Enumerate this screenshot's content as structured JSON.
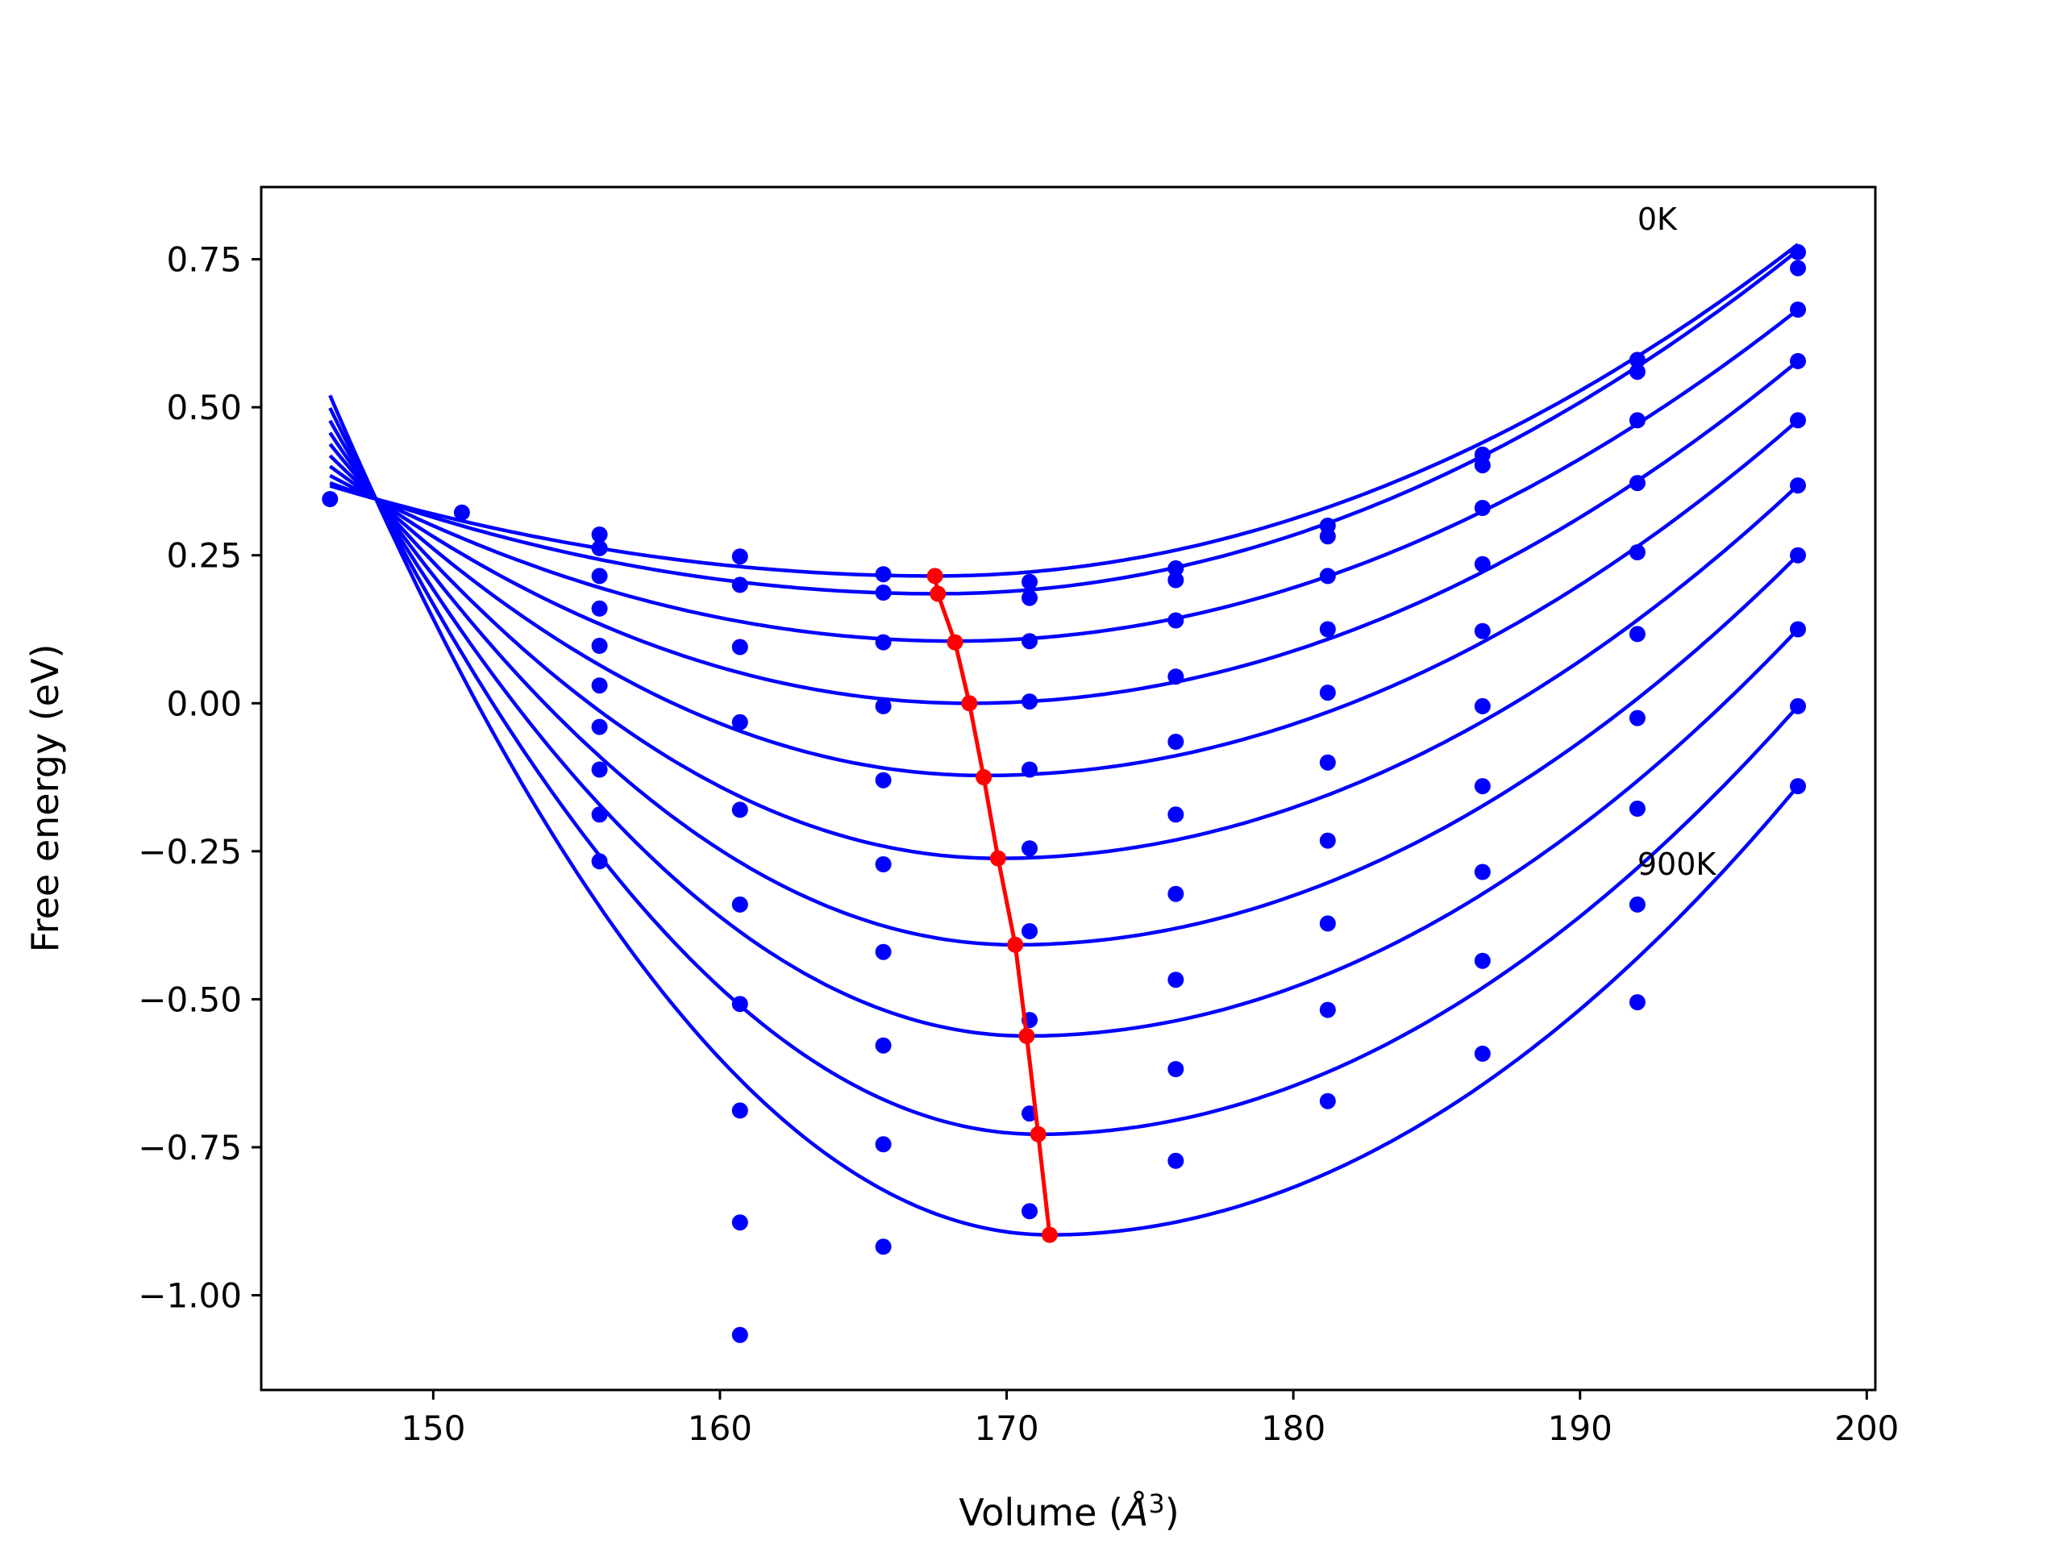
{
  "chart_data": {
    "type": "line",
    "title": "",
    "xlabel": "Volume (",
    "xlabel_unit": "Å",
    "xlabel_sup": "3",
    "xlabel_close": ")",
    "ylabel": "Free energy (eV)",
    "xlim": [
      144,
      200.3
    ],
    "ylim": [
      -1.16,
      0.872
    ],
    "xticks": [
      150,
      160,
      170,
      180,
      190,
      200
    ],
    "xtick_labels": [
      "150",
      "160",
      "170",
      "180",
      "190",
      "200"
    ],
    "yticks": [
      0.75,
      0.5,
      0.25,
      0.0,
      -0.25,
      -0.5,
      -0.75,
      -1.0
    ],
    "ytick_labels": [
      "0.75",
      "0.50",
      "0.25",
      "0.00",
      "−0.25",
      "−0.50",
      "−0.75",
      "−1.00"
    ],
    "grid": false,
    "legend": "none",
    "colors": {
      "fit_curves": "#0000ff",
      "data_points": "#0000ff",
      "minimum_path": "#ff0000"
    },
    "annotations": [
      {
        "text": "0K",
        "x": 192.0,
        "y": 0.8
      },
      {
        "text": "900K",
        "x": 192.0,
        "y": -0.29
      }
    ],
    "fit_curves": {
      "x_range": [
        146.4,
        197.6
      ],
      "pivot": {
        "x": 148.0,
        "y": 0.345
      },
      "curves": [
        {
          "min_x": 167.5,
          "min_y": 0.215,
          "end_y": 0.775
        },
        {
          "min_x": 167.6,
          "min_y": 0.185,
          "end_y": 0.765
        },
        {
          "min_x": 168.2,
          "min_y": 0.105,
          "end_y": 0.665
        },
        {
          "min_x": 168.7,
          "min_y": 0.0,
          "end_y": 0.578
        },
        {
          "min_x": 169.2,
          "min_y": -0.122,
          "end_y": 0.478
        },
        {
          "min_x": 169.7,
          "min_y": -0.262,
          "end_y": 0.368
        },
        {
          "min_x": 170.3,
          "min_y": -0.408,
          "end_y": 0.25
        },
        {
          "min_x": 170.7,
          "min_y": -0.562,
          "end_y": 0.125
        },
        {
          "min_x": 171.1,
          "min_y": -0.728,
          "end_y": -0.005
        },
        {
          "min_x": 171.5,
          "min_y": -0.898,
          "end_y": -0.14
        }
      ]
    },
    "data_points": [
      {
        "x": 146.4,
        "y": 0.345
      },
      {
        "x": 151.0,
        "y": 0.322
      },
      {
        "x": 155.8,
        "y": 0.285
      },
      {
        "x": 155.8,
        "y": 0.262
      },
      {
        "x": 155.8,
        "y": 0.215
      },
      {
        "x": 155.8,
        "y": 0.16
      },
      {
        "x": 155.8,
        "y": 0.097
      },
      {
        "x": 155.8,
        "y": 0.03
      },
      {
        "x": 155.8,
        "y": -0.04
      },
      {
        "x": 155.8,
        "y": -0.112
      },
      {
        "x": 155.8,
        "y": -0.188
      },
      {
        "x": 155.8,
        "y": -0.267
      },
      {
        "x": 160.7,
        "y": 0.248
      },
      {
        "x": 160.7,
        "y": 0.2
      },
      {
        "x": 160.7,
        "y": 0.095
      },
      {
        "x": 160.7,
        "y": -0.032
      },
      {
        "x": 160.7,
        "y": -0.18
      },
      {
        "x": 160.7,
        "y": -0.34
      },
      {
        "x": 160.7,
        "y": -0.508
      },
      {
        "x": 160.7,
        "y": -0.688
      },
      {
        "x": 160.7,
        "y": -0.877
      },
      {
        "x": 160.7,
        "y": -1.067
      },
      {
        "x": 165.7,
        "y": 0.218
      },
      {
        "x": 165.7,
        "y": 0.187
      },
      {
        "x": 165.7,
        "y": 0.103
      },
      {
        "x": 165.7,
        "y": -0.005
      },
      {
        "x": 165.7,
        "y": -0.13
      },
      {
        "x": 165.7,
        "y": -0.272
      },
      {
        "x": 165.7,
        "y": -0.42
      },
      {
        "x": 165.7,
        "y": -0.578
      },
      {
        "x": 165.7,
        "y": -0.745
      },
      {
        "x": 165.7,
        "y": -0.918
      },
      {
        "x": 170.8,
        "y": 0.205
      },
      {
        "x": 170.8,
        "y": 0.178
      },
      {
        "x": 170.8,
        "y": 0.105
      },
      {
        "x": 170.8,
        "y": 0.003
      },
      {
        "x": 170.8,
        "y": -0.112
      },
      {
        "x": 170.8,
        "y": -0.245
      },
      {
        "x": 170.8,
        "y": -0.385
      },
      {
        "x": 170.8,
        "y": -0.535
      },
      {
        "x": 170.8,
        "y": -0.693
      },
      {
        "x": 170.8,
        "y": -0.858
      },
      {
        "x": 175.9,
        "y": 0.228
      },
      {
        "x": 175.9,
        "y": 0.208
      },
      {
        "x": 175.9,
        "y": 0.14
      },
      {
        "x": 175.9,
        "y": 0.045
      },
      {
        "x": 175.9,
        "y": -0.065
      },
      {
        "x": 175.9,
        "y": -0.188
      },
      {
        "x": 175.9,
        "y": -0.322
      },
      {
        "x": 175.9,
        "y": -0.467
      },
      {
        "x": 175.9,
        "y": -0.618
      },
      {
        "x": 175.9,
        "y": -0.773
      },
      {
        "x": 181.2,
        "y": 0.3
      },
      {
        "x": 181.2,
        "y": 0.282
      },
      {
        "x": 181.2,
        "y": 0.215
      },
      {
        "x": 181.2,
        "y": 0.125
      },
      {
        "x": 181.2,
        "y": 0.018
      },
      {
        "x": 181.2,
        "y": -0.1
      },
      {
        "x": 181.2,
        "y": -0.232
      },
      {
        "x": 181.2,
        "y": -0.372
      },
      {
        "x": 181.2,
        "y": -0.518
      },
      {
        "x": 181.2,
        "y": -0.672
      },
      {
        "x": 186.6,
        "y": 0.42
      },
      {
        "x": 186.6,
        "y": 0.402
      },
      {
        "x": 186.6,
        "y": 0.33
      },
      {
        "x": 186.6,
        "y": 0.235
      },
      {
        "x": 186.6,
        "y": 0.122
      },
      {
        "x": 186.6,
        "y": -0.005
      },
      {
        "x": 186.6,
        "y": -0.14
      },
      {
        "x": 186.6,
        "y": -0.285
      },
      {
        "x": 186.6,
        "y": -0.435
      },
      {
        "x": 186.6,
        "y": -0.592
      },
      {
        "x": 192.0,
        "y": 0.58
      },
      {
        "x": 192.0,
        "y": 0.56
      },
      {
        "x": 192.0,
        "y": 0.478
      },
      {
        "x": 192.0,
        "y": 0.372
      },
      {
        "x": 192.0,
        "y": 0.255
      },
      {
        "x": 192.0,
        "y": 0.117
      },
      {
        "x": 192.0,
        "y": -0.025
      },
      {
        "x": 192.0,
        "y": -0.178
      },
      {
        "x": 192.0,
        "y": -0.34
      },
      {
        "x": 192.0,
        "y": -0.505
      },
      {
        "x": 197.6,
        "y": 0.762
      },
      {
        "x": 197.6,
        "y": 0.735
      },
      {
        "x": 197.6,
        "y": 0.665
      },
      {
        "x": 197.6,
        "y": 0.578
      },
      {
        "x": 197.6,
        "y": 0.478
      },
      {
        "x": 197.6,
        "y": 0.368
      },
      {
        "x": 197.6,
        "y": 0.25
      },
      {
        "x": 197.6,
        "y": 0.125
      },
      {
        "x": 197.6,
        "y": -0.005
      },
      {
        "x": 197.6,
        "y": -0.14
      }
    ],
    "minimum_path": [
      {
        "x": 167.5,
        "y": 0.215
      },
      {
        "x": 167.6,
        "y": 0.185
      },
      {
        "x": 168.2,
        "y": 0.103
      },
      {
        "x": 168.7,
        "y": 0.0
      },
      {
        "x": 169.2,
        "y": -0.125
      },
      {
        "x": 169.7,
        "y": -0.262
      },
      {
        "x": 170.3,
        "y": -0.408
      },
      {
        "x": 170.7,
        "y": -0.562
      },
      {
        "x": 171.1,
        "y": -0.728
      },
      {
        "x": 171.5,
        "y": -0.898
      }
    ]
  }
}
